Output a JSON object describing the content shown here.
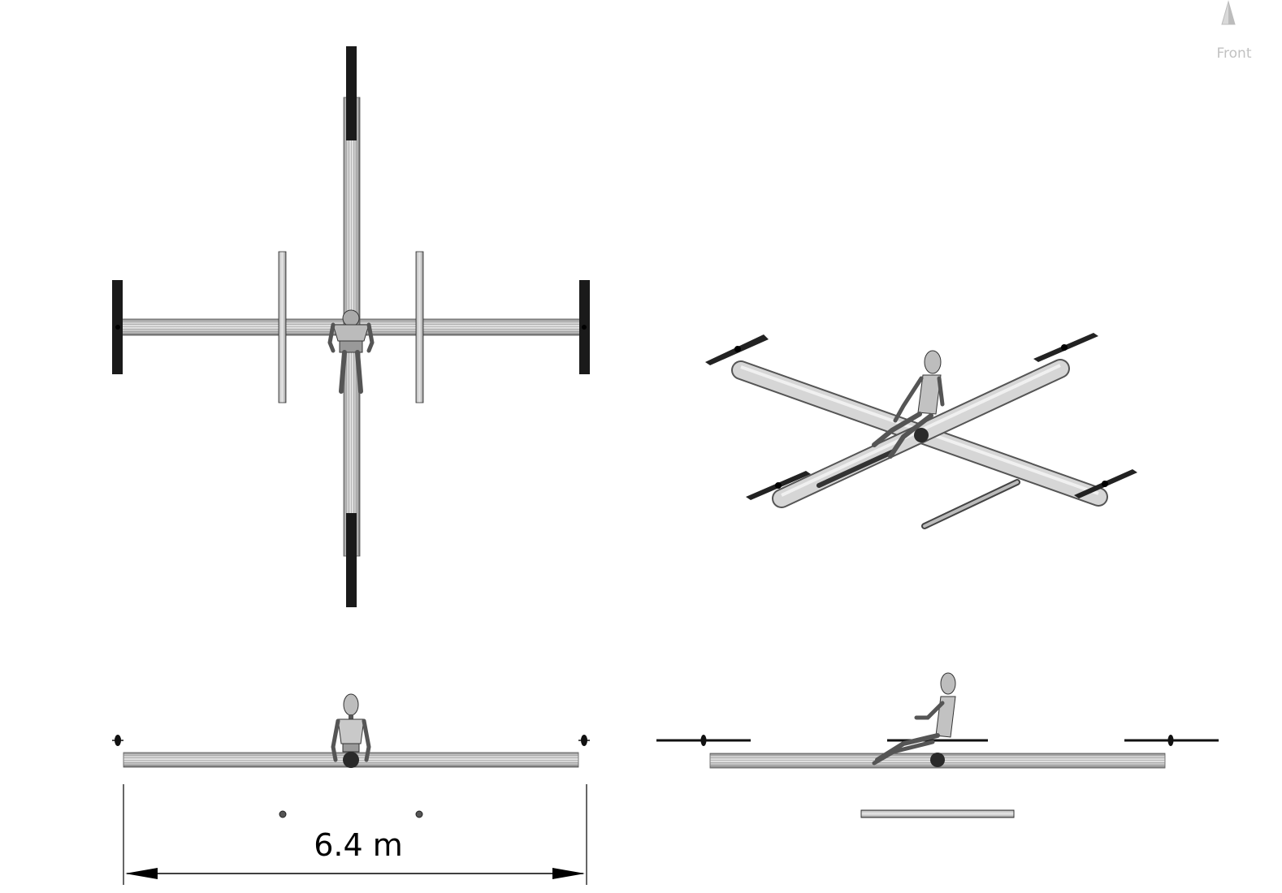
{
  "view_cube": {
    "label": "Front",
    "icon": "cone-icon",
    "color": "#c2c2c2"
  },
  "dimension": {
    "label": "6.4 m"
  },
  "colors": {
    "tube_dark": "#6b6b6b",
    "tube_light": "#dcdcdc",
    "blade": "#1a1a1a",
    "line": "#000000"
  }
}
